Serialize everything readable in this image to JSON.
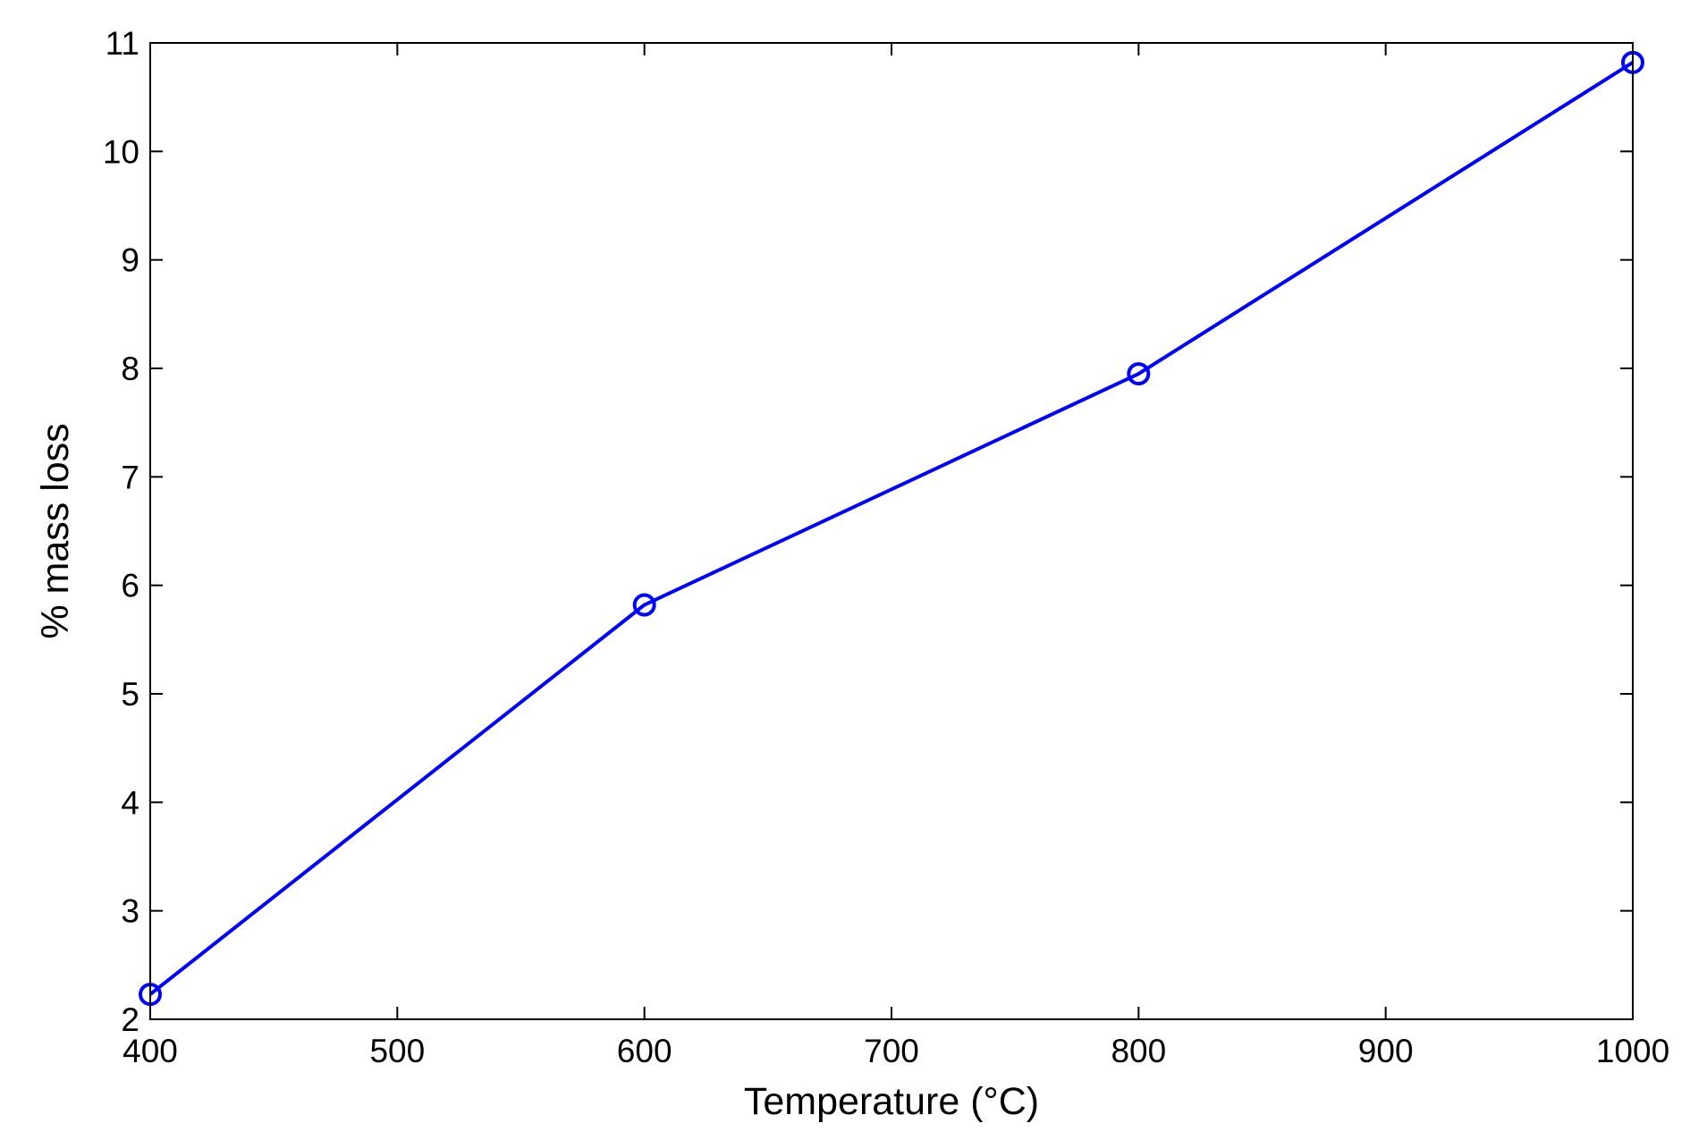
{
  "chart_data": {
    "type": "line",
    "xlabel": "Temperature (°C)",
    "ylabel": "% mass loss",
    "xlim": [
      400,
      1000
    ],
    "ylim": [
      2,
      11
    ],
    "xticks": [
      400,
      500,
      600,
      700,
      800,
      900,
      1000
    ],
    "yticks": [
      2,
      3,
      4,
      5,
      6,
      7,
      8,
      9,
      10,
      11
    ],
    "grid": false,
    "series": [
      {
        "x": [
          400,
          600,
          800,
          1000
        ],
        "y": [
          2.23,
          5.82,
          7.95,
          10.82
        ],
        "color": "#0000ff",
        "marker": "circle"
      }
    ]
  }
}
